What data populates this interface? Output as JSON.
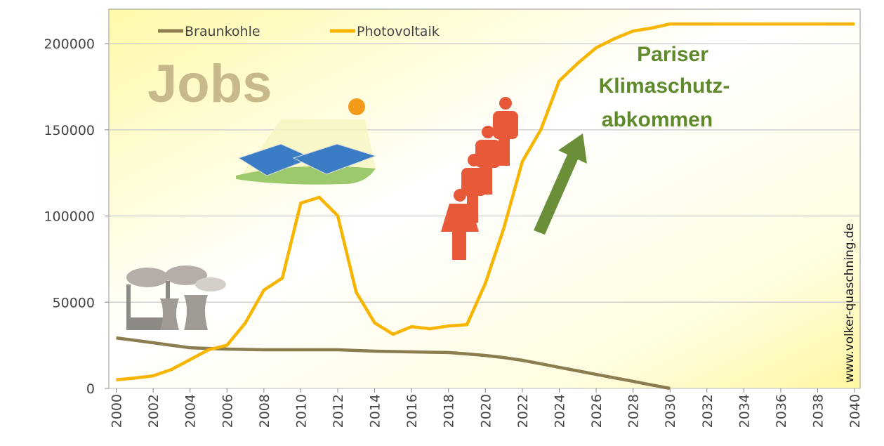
{
  "chart_data": {
    "type": "line",
    "big_label": "Jobs",
    "annotation_lines": [
      "Pariser",
      "Klimaschutz-",
      "abkommen"
    ],
    "source": "www.volker-quaschning.de",
    "x": [
      2000,
      2001,
      2002,
      2003,
      2004,
      2005,
      2006,
      2007,
      2008,
      2009,
      2010,
      2011,
      2012,
      2013,
      2014,
      2015,
      2016,
      2017,
      2018,
      2019,
      2020,
      2021,
      2022,
      2023,
      2024,
      2025,
      2026,
      2027,
      2028,
      2029,
      2030,
      2031,
      2032,
      2033,
      2034,
      2035,
      2036,
      2037,
      2038,
      2039,
      2040
    ],
    "series": [
      {
        "name": "Braunkohle",
        "color": "#8b7d4f",
        "values": [
          29300,
          27900,
          26500,
          25000,
          23600,
          23200,
          22800,
          22600,
          22400,
          22400,
          22400,
          22400,
          22400,
          22000,
          21600,
          21400,
          21200,
          21000,
          20800,
          20000,
          19100,
          17900,
          16300,
          14300,
          12200,
          10200,
          8100,
          6100,
          4100,
          2000,
          0,
          null,
          null,
          null,
          null,
          null,
          null,
          null,
          null,
          null,
          null
        ]
      },
      {
        "name": "Photovoltaik",
        "color": "#f7b500",
        "values": [
          5000,
          6000,
          7300,
          11000,
          16700,
          22400,
          25000,
          38000,
          57000,
          64000,
          107500,
          110800,
          100200,
          55800,
          38000,
          31400,
          35800,
          34600,
          36200,
          37000,
          61000,
          93000,
          131600,
          150000,
          178400,
          188600,
          197600,
          202900,
          207300,
          209000,
          211400,
          211400,
          211400,
          211400,
          211400,
          211400,
          211400,
          211400,
          211400,
          211400,
          211400
        ]
      }
    ],
    "xlim": [
      1999.6,
      2040.3
    ],
    "xticks": [
      2000,
      2002,
      2004,
      2006,
      2008,
      2010,
      2012,
      2014,
      2016,
      2018,
      2020,
      2022,
      2024,
      2026,
      2028,
      2030,
      2032,
      2034,
      2036,
      2038,
      2040
    ],
    "ylim": [
      0,
      220000
    ],
    "yticks": [
      0,
      50000,
      100000,
      150000,
      200000
    ],
    "grid": true,
    "legend": "top-left"
  }
}
